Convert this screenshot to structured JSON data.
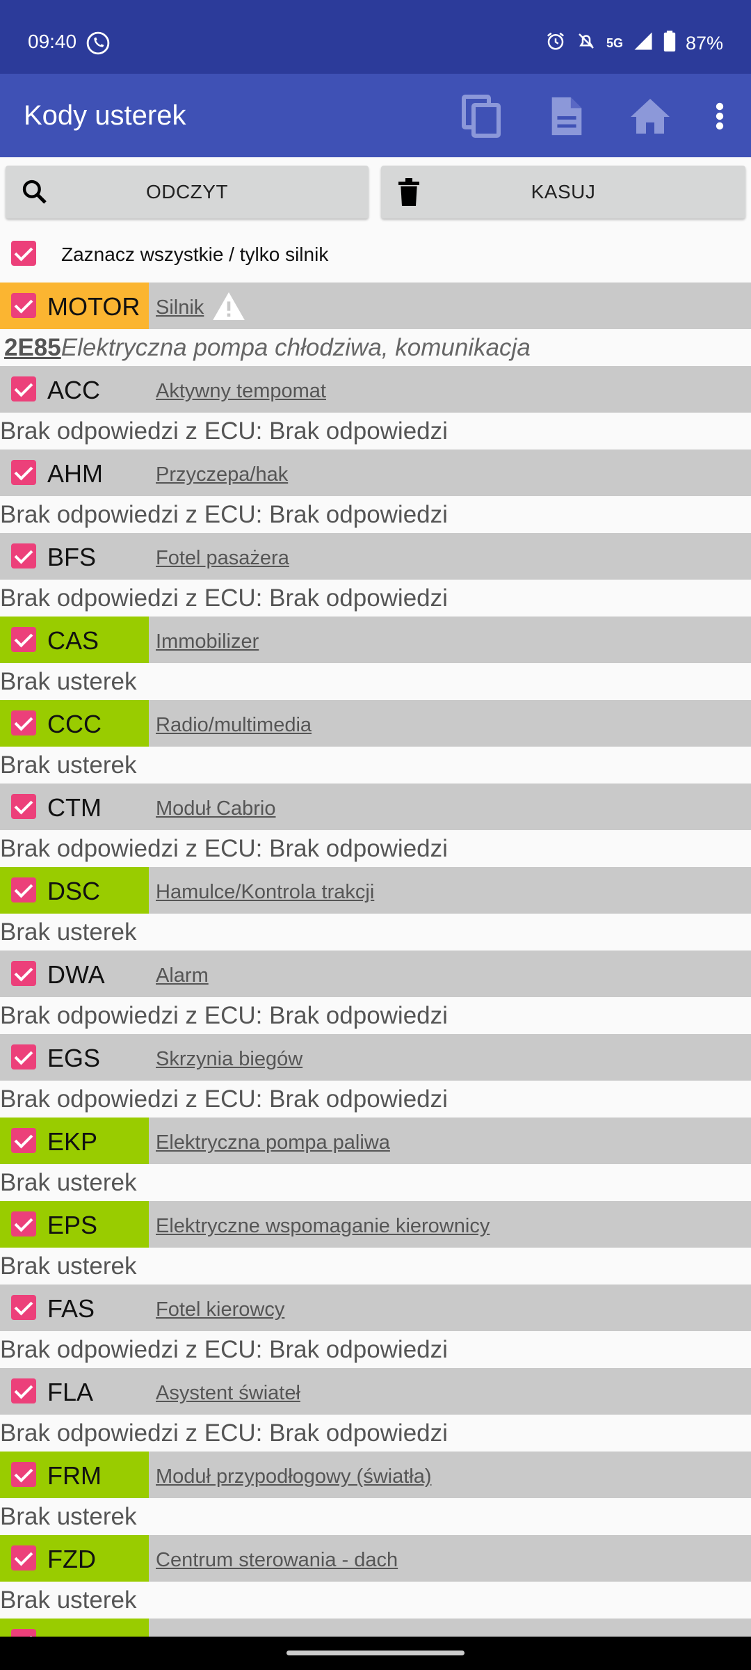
{
  "status_bar": {
    "time": "09:40",
    "network": "5G",
    "battery": "87%"
  },
  "app_bar": {
    "title": "Kody usterek"
  },
  "buttons": {
    "read_label": "ODCZYT",
    "clear_label": "KASUJ"
  },
  "select_all_label": "Zaznacz wszystkie / tylko silnik",
  "colors": {
    "engine": "#fbb531",
    "ok": "#99cc00",
    "neutral": "#c9c9c9",
    "checkbox": "#ec407a",
    "appbar": "#3f51b5"
  },
  "modules": [
    {
      "code": "MOTOR",
      "desc": "Silnik",
      "state": "engine",
      "result_code": "2E85",
      "result": "Elektryczna pompa chłodziwa, komunikacja"
    },
    {
      "code": "ACC",
      "desc": "Aktywny tempomat",
      "state": "neutral",
      "result": "Brak odpowiedzi z ECU: Brak odpowiedzi"
    },
    {
      "code": "AHM",
      "desc": "Przyczepa/hak",
      "state": "neutral",
      "result": "Brak odpowiedzi z ECU: Brak odpowiedzi"
    },
    {
      "code": "BFS",
      "desc": "Fotel pasażera",
      "state": "neutral",
      "result": "Brak odpowiedzi z ECU: Brak odpowiedzi"
    },
    {
      "code": "CAS",
      "desc": "Immobilizer",
      "state": "ok",
      "result": "Brak usterek"
    },
    {
      "code": "CCC",
      "desc": "Radio/multimedia",
      "state": "ok",
      "result": "Brak usterek"
    },
    {
      "code": "CTM",
      "desc": "Moduł Cabrio",
      "state": "neutral",
      "result": "Brak odpowiedzi z ECU: Brak odpowiedzi"
    },
    {
      "code": "DSC",
      "desc": "Hamulce/Kontrola trakcji",
      "state": "ok",
      "result": "Brak usterek"
    },
    {
      "code": "DWA",
      "desc": "Alarm",
      "state": "neutral",
      "result": "Brak odpowiedzi z ECU: Brak odpowiedzi"
    },
    {
      "code": "EGS",
      "desc": "Skrzynia biegów",
      "state": "neutral",
      "result": "Brak odpowiedzi z ECU: Brak odpowiedzi"
    },
    {
      "code": "EKP",
      "desc": "Elektryczna pompa paliwa",
      "state": "ok",
      "result": "Brak usterek"
    },
    {
      "code": "EPS",
      "desc": "Elektryczne wspomaganie kierownicy",
      "state": "ok",
      "result": "Brak usterek"
    },
    {
      "code": "FAS",
      "desc": "Fotel kierowcy",
      "state": "neutral",
      "result": "Brak odpowiedzi z ECU: Brak odpowiedzi"
    },
    {
      "code": "FLA",
      "desc": "Asystent świateł",
      "state": "neutral",
      "result": "Brak odpowiedzi z ECU: Brak odpowiedzi"
    },
    {
      "code": "FRM",
      "desc": "Moduł przypodłogowy (światła)",
      "state": "ok",
      "result": "Brak usterek"
    },
    {
      "code": "FZD",
      "desc": "Centrum sterowania - dach",
      "state": "ok",
      "result": "Brak usterek"
    }
  ]
}
